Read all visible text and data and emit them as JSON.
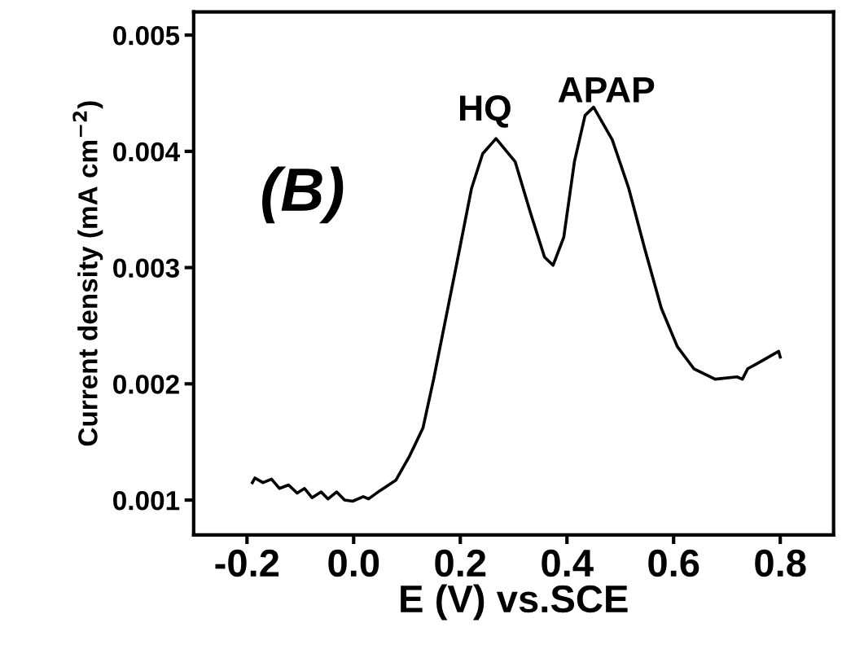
{
  "chart_data": {
    "type": "line",
    "xlabel": "E (V) vs.SCE",
    "ylabel": "Current density (mA cm$^{−2}$)",
    "xlim": [
      -0.3,
      0.9
    ],
    "ylim": [
      0.0007,
      0.0052
    ],
    "xticks": [
      -0.2,
      {
        "value": 0,
        "label": "0.0"
      },
      0.2,
      0.4,
      0.6,
      0.8
    ],
    "yticks": [
      0.001,
      0.002,
      0.003,
      0.004,
      0.005
    ],
    "grid": false,
    "legend": false,
    "marker": "none",
    "line_style": "solid",
    "annotations": [
      "HQ",
      "APAP",
      "(B)"
    ],
    "series": [
      {
        "color": "#000000",
        "x": [
          -0.19,
          -0.185,
          -0.17,
          -0.154,
          -0.139,
          -0.122,
          -0.106,
          -0.092,
          -0.078,
          -0.061,
          -0.048,
          -0.032,
          -0.017,
          -0.002,
          0.018,
          0.028,
          0.049,
          0.079,
          0.105,
          0.13,
          0.15,
          0.191,
          0.221,
          0.242,
          0.267,
          0.303,
          0.333,
          0.358,
          0.374,
          0.394,
          0.414,
          0.434,
          0.45,
          0.485,
          0.516,
          0.546,
          0.577,
          0.607,
          0.638,
          0.678,
          0.719,
          0.729,
          0.739,
          0.759,
          0.797,
          0.8
        ],
        "values": [
          0.00115,
          0.00119,
          0.00115,
          0.00118,
          0.0011,
          0.00113,
          0.00106,
          0.0011,
          0.00102,
          0.00107,
          0.00101,
          0.00107,
          0.001,
          0.00099,
          0.00103,
          0.00101,
          0.00108,
          0.00117,
          0.00138,
          0.00162,
          0.00204,
          0.00298,
          0.00368,
          0.00398,
          0.00411,
          0.00391,
          0.00345,
          0.00309,
          0.00302,
          0.00326,
          0.00391,
          0.00431,
          0.00438,
          0.0041,
          0.00368,
          0.00316,
          0.00265,
          0.00232,
          0.00213,
          0.00204,
          0.00206,
          0.00204,
          0.00213,
          0.00218,
          0.00228,
          0.00223
        ]
      }
    ]
  }
}
